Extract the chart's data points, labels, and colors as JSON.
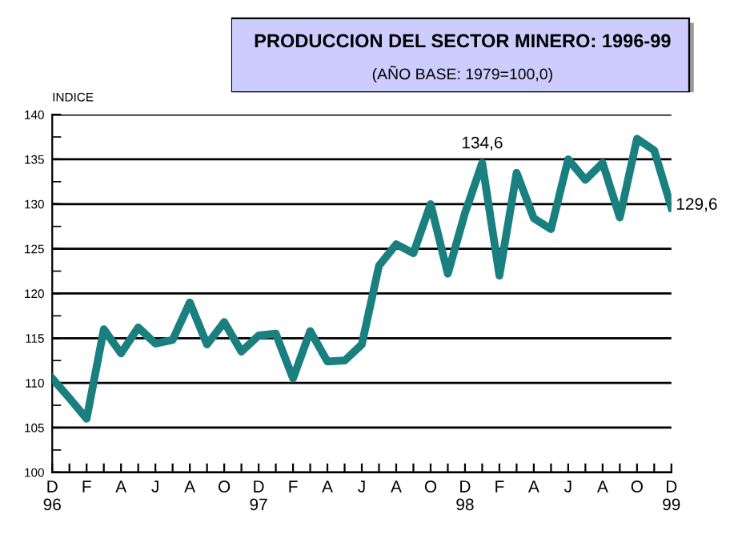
{
  "chart_data": {
    "type": "line",
    "title": "PRODUCCION DEL SECTOR MINERO: 1996-99",
    "subtitle": "(AÑO BASE: 1979=100,0)",
    "ylabel": "INDICE",
    "categories": [
      "D\n96",
      null,
      "F",
      null,
      "A",
      null,
      "J",
      null,
      "A",
      null,
      "O",
      null,
      "D\n97",
      null,
      "F",
      null,
      "A",
      null,
      "J",
      null,
      "A",
      null,
      "O",
      null,
      "D\n98",
      null,
      "F",
      null,
      "A",
      null,
      "J",
      null,
      "A",
      null,
      "O",
      null,
      "D\n99"
    ],
    "series": [
      {
        "color": "#1a7f7f",
        "values": [
          110.5,
          108.3,
          106.0,
          116.0,
          113.3,
          116.2,
          114.4,
          114.8,
          119.0,
          114.3,
          116.8,
          113.5,
          115.3,
          115.5,
          110.5,
          115.8,
          112.4,
          112.5,
          114.3,
          123.1,
          125.5,
          124.5,
          130.0,
          122.2,
          129.0,
          134.6,
          122.0,
          133.5,
          128.4,
          127.2,
          135.0,
          132.7,
          134.6,
          128.5,
          137.3,
          136.0,
          129.6
        ],
        "value_labels": [
          null,
          null,
          null,
          null,
          null,
          null,
          null,
          null,
          null,
          null,
          null,
          null,
          null,
          null,
          null,
          null,
          null,
          null,
          null,
          null,
          null,
          null,
          null,
          null,
          null,
          "134,6",
          null,
          null,
          null,
          null,
          null,
          null,
          null,
          null,
          null,
          null,
          "129,6"
        ]
      }
    ],
    "ylim": [
      100,
      140
    ],
    "yticks": [
      100,
      105,
      110,
      115,
      120,
      125,
      130,
      135,
      140
    ],
    "grid": "y",
    "marker": "none",
    "line_style": "solid"
  }
}
